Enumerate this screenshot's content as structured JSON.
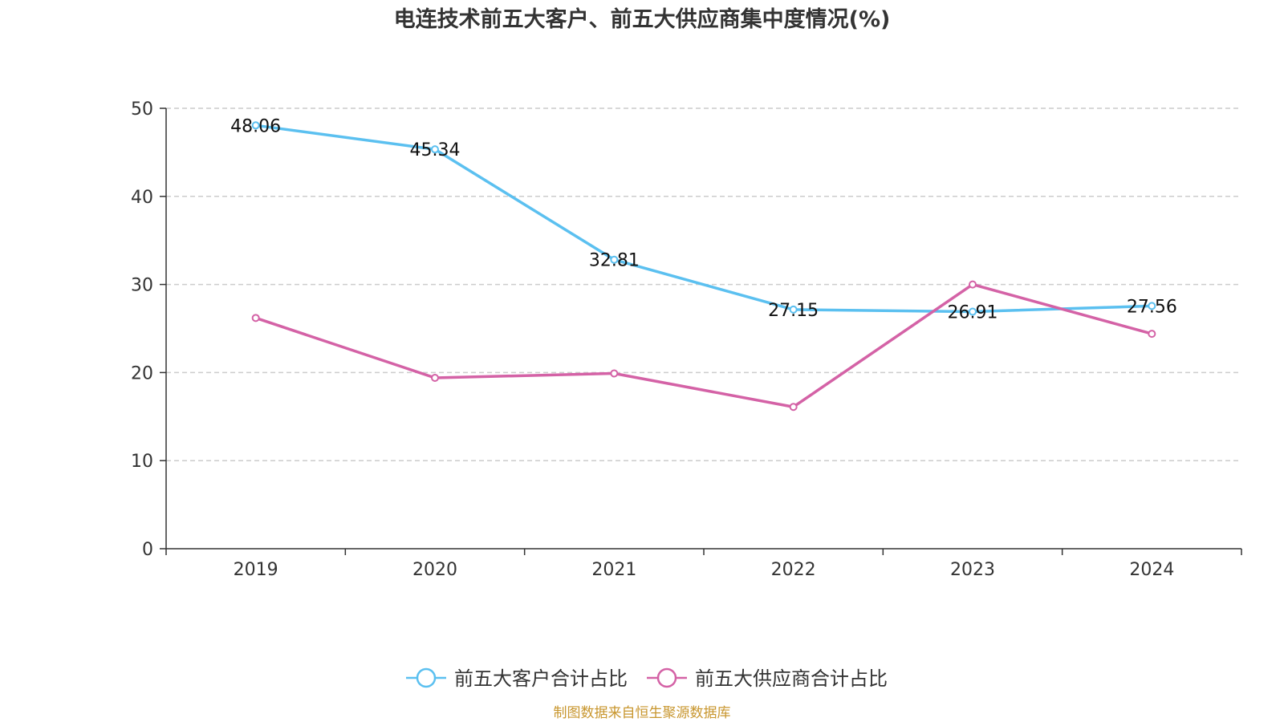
{
  "chart_data": {
    "type": "line",
    "title": "电连技术前五大客户、前五大供应商集中度情况(%)",
    "categories": [
      "2019",
      "2020",
      "2021",
      "2022",
      "2023",
      "2024"
    ],
    "ylim": [
      0,
      50
    ],
    "yticks": [
      0,
      10,
      20,
      30,
      40,
      50
    ],
    "grid": true,
    "legend_position": "bottom-center",
    "series": [
      {
        "name": "前五大客户合计占比",
        "color": "#5bc0f0",
        "values": [
          48.06,
          45.34,
          32.81,
          27.15,
          26.91,
          27.56
        ],
        "labels": [
          "48.06",
          "45.34",
          "32.81",
          "27.15",
          "26.91",
          "27.56"
        ]
      },
      {
        "name": "前五大供应商合计占比",
        "color": "#d462a6",
        "values": [
          26.2,
          19.4,
          19.9,
          16.1,
          30.0,
          24.4
        ],
        "labels": null
      }
    ],
    "source_note": "制图数据来自恒生聚源数据库"
  }
}
